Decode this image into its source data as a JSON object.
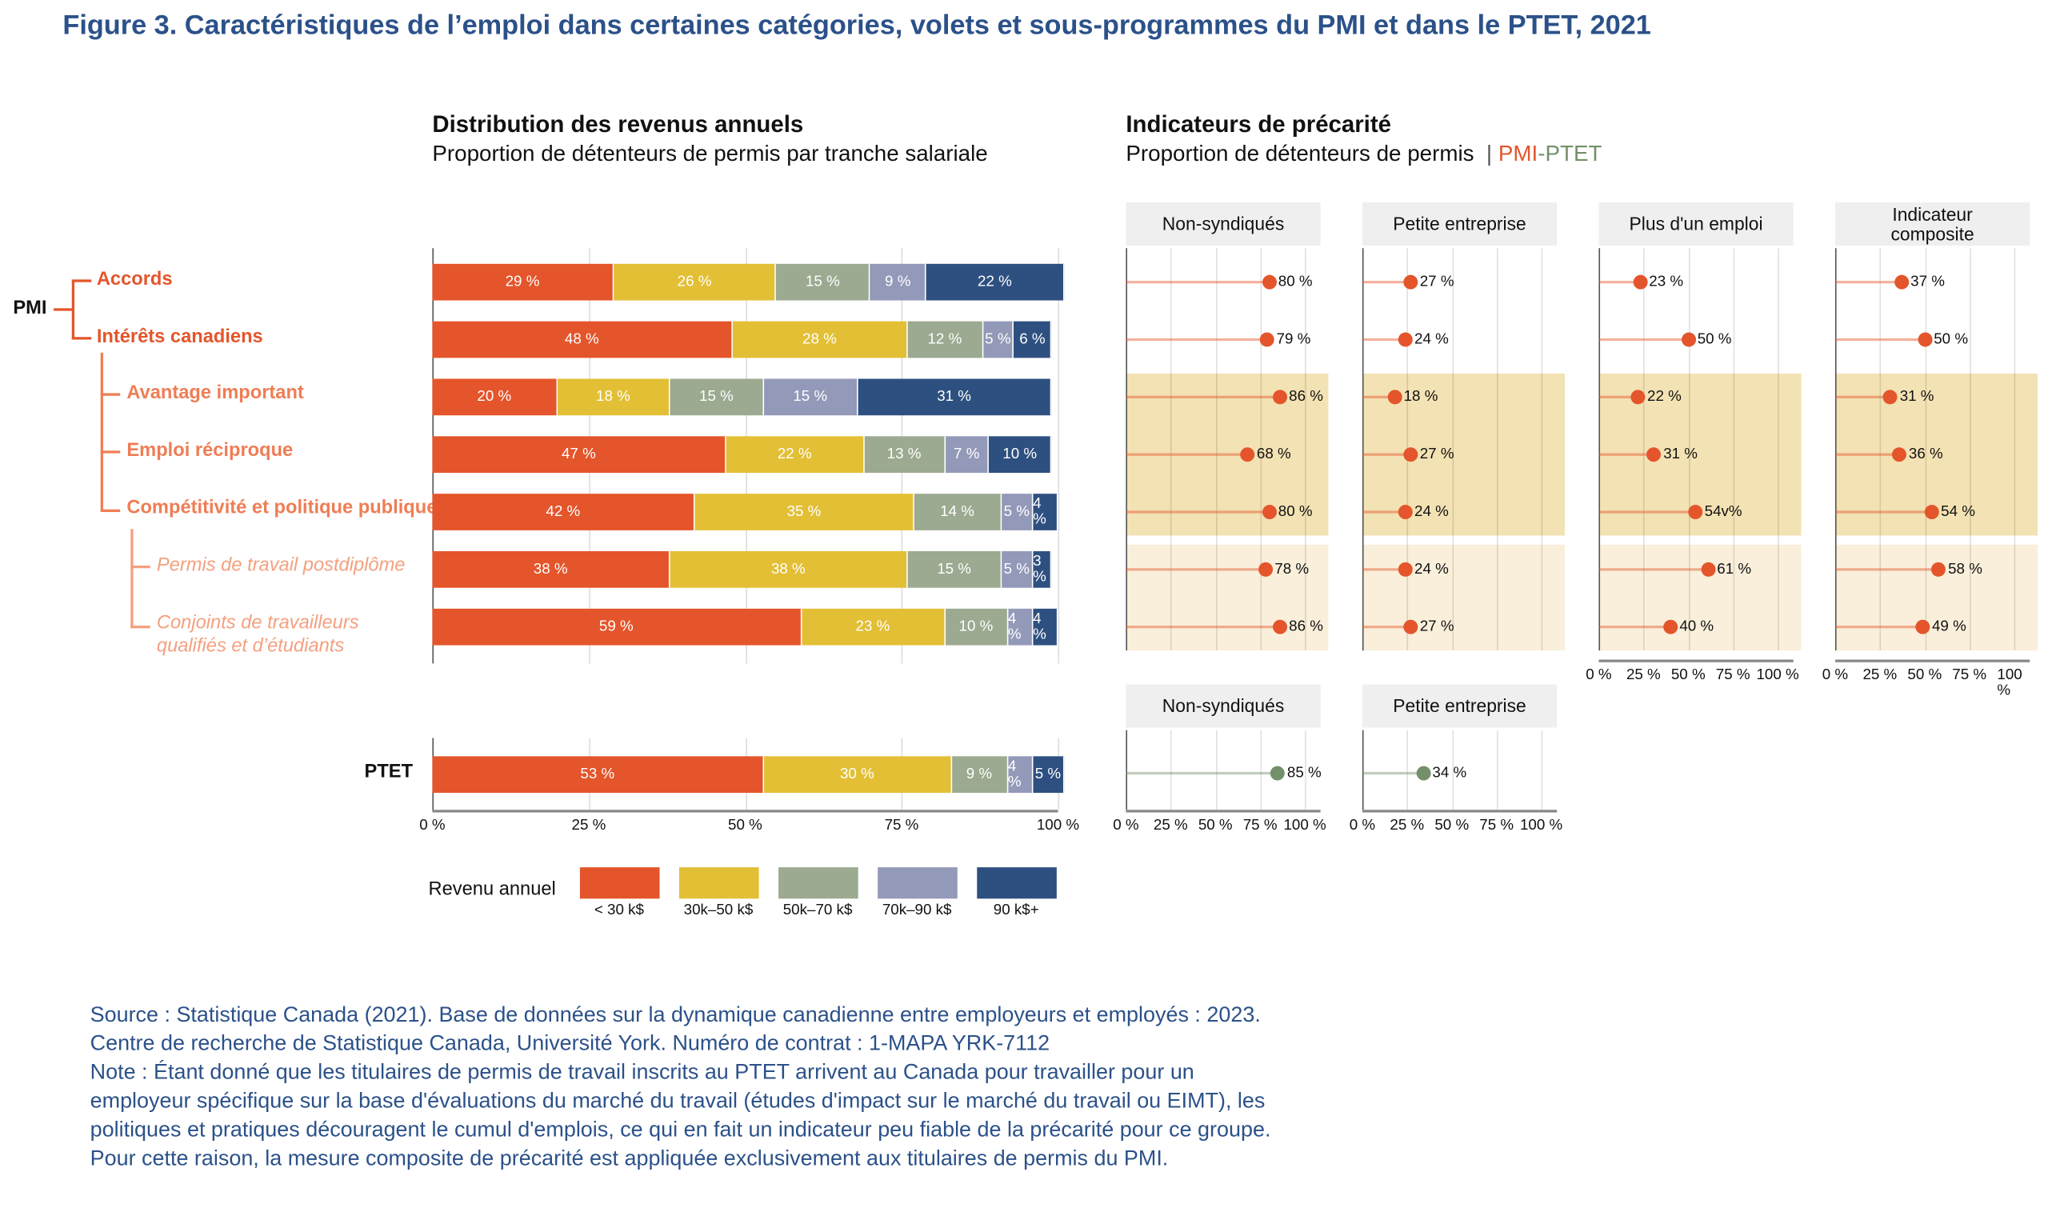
{
  "title": "Figure 3. Caractéristiques de l’emploi dans certaines catégories, volets et sous-programmes du PMI et dans le PTET, 2021",
  "colors": {
    "lt30": "#E4552B",
    "k30_50": "#E2BF35",
    "k50_70": "#9BAA90",
    "k70_90": "#9399B8",
    "k90p": "#2E5080",
    "pmi": "#E4552B",
    "ptet": "#74906A",
    "band_dark": "#F3E2B3",
    "band_light": "#F9EFDA"
  },
  "left": {
    "title": "Distribution des revenus annuels",
    "subtitle": "Proportion de détenteurs de permis par tranche salariale"
  },
  "right": {
    "title": "Indicateurs de précarité",
    "subtitle": "Proportion de détenteurs de permis",
    "sep": "|",
    "pmi": "PMI",
    "dash": "-",
    "ptet": "PTET"
  },
  "tree": {
    "pmi": "PMI",
    "ptet": "PTET",
    "rows": [
      "Accords",
      "Intérêts canadiens",
      "Avantage important",
      "Emploi réciproque",
      "Compétitivité et politique publique",
      "Permis de travail postdiplôme",
      "Conjoints de travailleurs",
      "qualifiés et d’étudiants"
    ]
  },
  "chart_data": [
    {
      "type": "bar",
      "stacked": true,
      "orientation": "horizontal",
      "title": "Distribution des revenus annuels",
      "categories": [
        "Accords",
        "Intérêts canadiens",
        "Avantage important",
        "Emploi réciproque",
        "Compétitivité et politique publique",
        "Permis de travail postdiplôme",
        "Conjoints de travailleurs qualifiés et d’étudiants",
        "PTET"
      ],
      "series": [
        {
          "name": "< 30 k$",
          "values": [
            29,
            48,
            20,
            47,
            42,
            38,
            59,
            53
          ],
          "labels": [
            "29 %",
            "48 %",
            "20 %",
            "47 %",
            "42 %",
            "38 %",
            "59 %",
            "53 %"
          ]
        },
        {
          "name": "30k–50 k$",
          "values": [
            26,
            28,
            18,
            22,
            35,
            38,
            23,
            30
          ],
          "labels": [
            "26 %",
            "28 %",
            "18 %",
            "22 %",
            "35 %",
            "38 %",
            "23 %",
            "30 %"
          ]
        },
        {
          "name": "50k–70 k$",
          "values": [
            15,
            12,
            15,
            13,
            14,
            15,
            10,
            9
          ],
          "labels": [
            "15 %",
            "12 %",
            "15 %",
            "13 %",
            "14 %",
            "15 %",
            "10 %",
            "9 %"
          ]
        },
        {
          "name": "70k–90 k$",
          "values": [
            9,
            5,
            15,
            7,
            5,
            5,
            4,
            4
          ],
          "labels": [
            "9 %",
            "5 %",
            "15 %",
            "7 %",
            "5 %",
            "5 %",
            "4 %",
            "4 %"
          ]
        },
        {
          "name": "90 k$+",
          "values": [
            22,
            6,
            31,
            10,
            4,
            3,
            4,
            5
          ],
          "labels": [
            "22 %",
            "6 %",
            "31 %",
            "10 %",
            "4 %",
            "3 %",
            "4 %",
            "5 %"
          ]
        }
      ],
      "xlim": [
        0,
        100
      ],
      "xticks": [
        "0 %",
        "25 %",
        "50 %",
        "75 %",
        "100 %"
      ],
      "legend_title": "Revenu annuel",
      "legend_placement": "bottom"
    },
    {
      "type": "scatter",
      "style": "lollipop",
      "title": "Indicateurs de précarité",
      "panels": [
        {
          "name": "Non-syndiqués",
          "values": [
            80,
            79,
            86,
            68,
            80,
            78,
            86
          ],
          "labels": [
            "80 %",
            "79 %",
            "86 %",
            "68 %",
            "80 %",
            "78 %",
            "86 %"
          ]
        },
        {
          "name": "Petite entreprise",
          "values": [
            27,
            24,
            18,
            27,
            24,
            24,
            27
          ],
          "labels": [
            "27 %",
            "24 %",
            "18 %",
            "27 %",
            "24 %",
            "24 %",
            "27 %"
          ]
        },
        {
          "name": "Plus d'un emploi",
          "values": [
            23,
            50,
            22,
            31,
            54,
            61,
            40
          ],
          "labels": [
            "23 %",
            "50 %",
            "22 %",
            "31 %",
            "54v%",
            "61 %",
            "40 %"
          ]
        },
        {
          "name": "Indicateur composite",
          "name_lines": [
            "Indicateur",
            "composite"
          ],
          "values": [
            37,
            50,
            31,
            36,
            54,
            58,
            49
          ],
          "labels": [
            "37 %",
            "50 %",
            "31 %",
            "36 %",
            "54 %",
            "58 %",
            "49 %"
          ]
        }
      ],
      "ptet_panels": [
        {
          "name": "Non-syndiqués",
          "values": [
            85
          ],
          "labels": [
            "85 %"
          ]
        },
        {
          "name": "Petite entreprise",
          "values": [
            34
          ],
          "labels": [
            "34 %"
          ]
        }
      ],
      "xlim": [
        0,
        100
      ],
      "xticks": [
        "0 %",
        "25 %",
        "50 %",
        "75 %",
        "100 %"
      ]
    }
  ],
  "source": {
    "lines": [
      "Source : Statistique Canada (2021). Base de données sur la dynamique canadienne entre employeurs et employés : 2023. Centre de recherche de Statistique Canada, Université York. Numéro de contrat : 1-MAPA YRK-7112",
      "Note : Étant donné que les titulaires de permis de travail inscrits au PTET arrivent au Canada pour travailler pour un employeur spécifique sur la base d'évaluations du marché du travail (études d'impact sur le marché du travail ou EIMT), les politiques et pratiques découragent le cumul d'emplois, ce qui en fait un indicateur peu fiable de la précarité pour ce groupe. Pour cette raison, la mesure composite de précarité est appliquée exclusivement aux titulaires de permis du PMI."
    ]
  }
}
